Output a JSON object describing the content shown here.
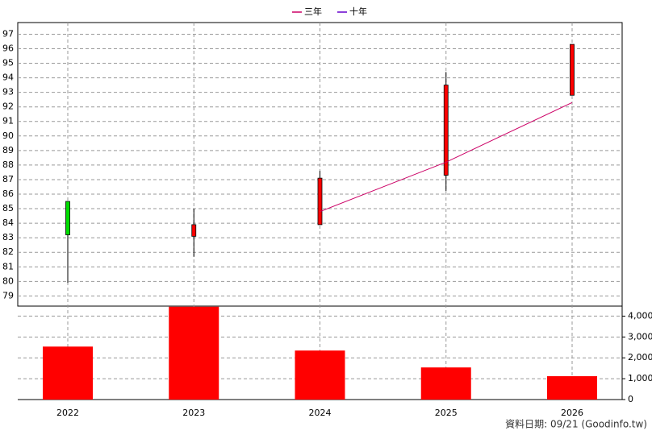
{
  "chart_data": [
    {
      "type": "candlestick",
      "categories": [
        "2022",
        "2023",
        "2024",
        "2025",
        "2026"
      ],
      "open": [
        85.5,
        83.1,
        83.9,
        87.3,
        92.8
      ],
      "high": [
        85.5,
        85.0,
        87.6,
        94.4,
        96.3
      ],
      "low": [
        79.9,
        81.7,
        83.9,
        86.2,
        92.8
      ],
      "close": [
        83.2,
        83.9,
        87.1,
        93.5,
        96.3
      ],
      "up_color": "#ff0000",
      "down_color": "#00dd00",
      "wick_color": "#000000",
      "series": [
        {
          "name": "三年",
          "color": "#cc0066",
          "values": [
            null,
            null,
            84.8,
            88.2,
            92.3
          ]
        },
        {
          "name": "十年",
          "color": "#6600cc",
          "values": [
            null,
            null,
            null,
            null,
            null
          ]
        }
      ],
      "ylim": [
        78.3,
        97.8
      ],
      "yticks": [
        79,
        80,
        81,
        82,
        83,
        84,
        85,
        86,
        87,
        88,
        89,
        90,
        91,
        92,
        93,
        94,
        95,
        96,
        97
      ],
      "grid": true,
      "note": "資料日期: 09/21  (Goodinfo.tw)"
    },
    {
      "type": "bar",
      "values": [
        2540,
        4450,
        2350,
        1540,
        1120
      ],
      "color": "#ff0000",
      "ylim": [
        0,
        4480
      ],
      "yticks": [
        0,
        {
          "value": 1000,
          "label": "1,000"
        },
        {
          "value": 2000,
          "label": "2,000"
        },
        {
          "value": 3000,
          "label": "3,000"
        },
        {
          "value": 4000,
          "label": "4,000"
        }
      ],
      "grid": true
    }
  ]
}
